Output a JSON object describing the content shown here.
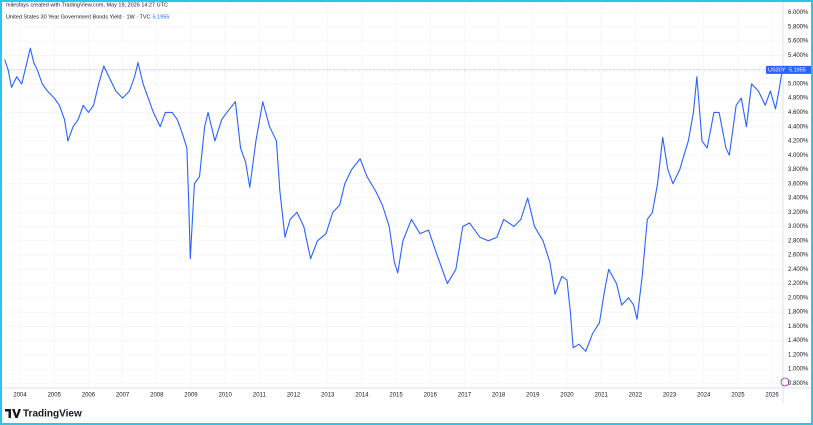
{
  "header": {
    "attribution": "milesfays created with TradingView.com, May 19, 2026 14:27 UTC",
    "symbol_title": "United States 30 Year Government Bonds Yield · 1W · TVC"
  },
  "chart_data": {
    "type": "line",
    "x": [
      2003.55,
      2003.65,
      2003.75,
      2003.9,
      2004.05,
      2004.2,
      2004.3,
      2004.4,
      2004.5,
      2004.65,
      2004.8,
      2005.0,
      2005.15,
      2005.3,
      2005.4,
      2005.55,
      2005.7,
      2005.85,
      2006.0,
      2006.15,
      2006.3,
      2006.45,
      2006.6,
      2006.8,
      2007.0,
      2007.2,
      2007.35,
      2007.45,
      2007.6,
      2007.75,
      2007.9,
      2008.1,
      2008.25,
      2008.45,
      2008.6,
      2008.75,
      2008.88,
      2008.93,
      2008.98,
      2009.1,
      2009.25,
      2009.4,
      2009.5,
      2009.7,
      2009.9,
      2010.05,
      2010.3,
      2010.45,
      2010.6,
      2010.72,
      2010.9,
      2011.1,
      2011.3,
      2011.5,
      2011.6,
      2011.75,
      2011.9,
      2012.1,
      2012.3,
      2012.5,
      2012.7,
      2012.95,
      2013.15,
      2013.35,
      2013.5,
      2013.7,
      2013.95,
      2014.15,
      2014.4,
      2014.6,
      2014.8,
      2014.95,
      2015.05,
      2015.2,
      2015.45,
      2015.7,
      2015.95,
      2016.2,
      2016.5,
      2016.75,
      2016.95,
      2017.15,
      2017.45,
      2017.7,
      2017.95,
      2018.15,
      2018.45,
      2018.65,
      2018.85,
      2019.05,
      2019.3,
      2019.5,
      2019.65,
      2019.85,
      2020.0,
      2020.1,
      2020.18,
      2020.35,
      2020.55,
      2020.75,
      2020.95,
      2021.1,
      2021.22,
      2021.45,
      2021.6,
      2021.8,
      2021.95,
      2022.05,
      2022.2,
      2022.35,
      2022.5,
      2022.65,
      2022.8,
      2022.95,
      2023.1,
      2023.3,
      2023.55,
      2023.7,
      2023.8,
      2023.95,
      2024.1,
      2024.3,
      2024.45,
      2024.65,
      2024.75,
      2024.95,
      2025.1,
      2025.25,
      2025.4,
      2025.6,
      2025.8,
      2025.95,
      2026.1,
      2026.2,
      2026.3
    ],
    "series": [
      {
        "name": "US30Y",
        "color": "#2962ff",
        "values": [
          5.34,
          5.2,
          4.95,
          5.1,
          5.0,
          5.3,
          5.5,
          5.3,
          5.2,
          5.0,
          4.9,
          4.8,
          4.7,
          4.5,
          4.2,
          4.4,
          4.5,
          4.7,
          4.6,
          4.7,
          5.0,
          5.25,
          5.1,
          4.9,
          4.8,
          4.9,
          5.1,
          5.3,
          5.0,
          4.8,
          4.6,
          4.4,
          4.6,
          4.6,
          4.5,
          4.3,
          4.1,
          3.4,
          2.55,
          3.6,
          3.7,
          4.4,
          4.6,
          4.2,
          4.5,
          4.6,
          4.75,
          4.1,
          3.9,
          3.55,
          4.2,
          4.75,
          4.4,
          4.2,
          3.5,
          2.85,
          3.1,
          3.2,
          3.0,
          2.55,
          2.8,
          2.9,
          3.2,
          3.3,
          3.6,
          3.8,
          3.95,
          3.7,
          3.5,
          3.3,
          3.0,
          2.5,
          2.35,
          2.8,
          3.1,
          2.9,
          2.95,
          2.6,
          2.2,
          2.4,
          3.0,
          3.05,
          2.85,
          2.8,
          2.85,
          3.1,
          3.0,
          3.1,
          3.4,
          3.0,
          2.8,
          2.5,
          2.05,
          2.3,
          2.25,
          1.8,
          1.3,
          1.35,
          1.25,
          1.5,
          1.65,
          2.1,
          2.4,
          2.2,
          1.9,
          2.0,
          1.9,
          1.7,
          2.3,
          3.1,
          3.2,
          3.6,
          4.25,
          3.8,
          3.6,
          3.8,
          4.2,
          4.6,
          5.1,
          4.2,
          4.1,
          4.6,
          4.6,
          4.1,
          4.0,
          4.7,
          4.8,
          4.4,
          5.0,
          4.9,
          4.7,
          4.9,
          4.65,
          4.9,
          5.1955
        ]
      }
    ],
    "xlim": [
      2003.53,
      2026.32
    ],
    "xticks": [
      2004,
      2005,
      2006,
      2007,
      2008,
      2009,
      2010,
      2011,
      2012,
      2013,
      2014,
      2015,
      2016,
      2017,
      2018,
      2019,
      2020,
      2021,
      2022,
      2023,
      2024,
      2025,
      2026
    ],
    "ylim": [
      0.75,
      6.12
    ],
    "yticks": [
      {
        "value": 0.8,
        "label": "0.800%"
      },
      {
        "value": 1.0,
        "label": "1.000%"
      },
      {
        "value": 1.2,
        "label": "1.200%"
      },
      {
        "value": 1.4,
        "label": "1.400%"
      },
      {
        "value": 1.6,
        "label": "1.600%"
      },
      {
        "value": 1.8,
        "label": "1.800%"
      },
      {
        "value": 2.0,
        "label": "2.000%"
      },
      {
        "value": 2.2,
        "label": "2.200%"
      },
      {
        "value": 2.4,
        "label": "2.400%"
      },
      {
        "value": 2.6,
        "label": "2.600%"
      },
      {
        "value": 2.8,
        "label": "2.800%"
      },
      {
        "value": 3.0,
        "label": "3.000%"
      },
      {
        "value": 3.2,
        "label": "3.200%"
      },
      {
        "value": 3.4,
        "label": "3.400%"
      },
      {
        "value": 3.6,
        "label": "3.600%"
      },
      {
        "value": 3.8,
        "label": "3.800%"
      },
      {
        "value": 4.0,
        "label": "4.000%"
      },
      {
        "value": 4.2,
        "label": "4.200%"
      },
      {
        "value": 4.4,
        "label": "4.400%"
      },
      {
        "value": 4.6,
        "label": "4.600%"
      },
      {
        "value": 4.8,
        "label": "4.800%"
      },
      {
        "value": 5.0,
        "label": "5.000%"
      },
      {
        "value": 5.2,
        "label": "5.200%"
      },
      {
        "value": 5.4,
        "label": "5.400%"
      },
      {
        "value": 5.6,
        "label": "5.600%"
      },
      {
        "value": 5.8,
        "label": "5.800%"
      },
      {
        "value": 6.0,
        "label": "6.000%"
      }
    ],
    "grid": true,
    "last_price_line": true
  },
  "footer": {
    "brand": "TradingView"
  }
}
